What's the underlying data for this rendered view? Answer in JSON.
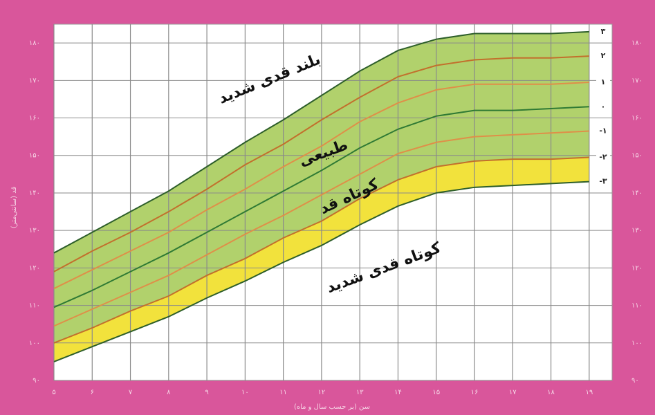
{
  "chart_data": {
    "type": "line",
    "x_label": "سن (بر حسب سال و ماه)",
    "y_label": "قد (سانتی‌متر)",
    "annotations": [
      "بلند قدی شدید",
      "طبیعی",
      "کوتاه قد",
      "کوتاه قدی شدید"
    ],
    "x": [
      5,
      6,
      7,
      8,
      9,
      10,
      11,
      12,
      13,
      14,
      15,
      16,
      17,
      18,
      19
    ],
    "series": [
      {
        "name": "۳",
        "color": "#2d5e2a",
        "values": [
          124,
          129.5,
          135,
          140.5,
          147,
          153.5,
          159.5,
          166,
          172.5,
          178,
          181,
          182.5,
          182.5,
          182.5,
          183
        ]
      },
      {
        "name": "۲",
        "color": "#c2702c",
        "values": [
          119,
          124.5,
          129.5,
          135,
          141,
          147.5,
          153,
          159.5,
          165.5,
          171,
          174,
          175.5,
          176,
          176,
          176.5
        ]
      },
      {
        "name": "۱",
        "color": "#df8f48",
        "values": [
          114.5,
          119.5,
          124.5,
          129.5,
          135.5,
          141,
          147,
          152.5,
          159,
          164,
          167.5,
          169,
          169,
          169,
          169.5
        ]
      },
      {
        "name": "۰",
        "color": "#2f7a34",
        "values": [
          109.5,
          114,
          119,
          124,
          129.5,
          135,
          140.5,
          146,
          152,
          157,
          160.5,
          162,
          162,
          162.5,
          163
        ]
      },
      {
        "name": "-۱",
        "color": "#df8f48",
        "values": [
          104.5,
          109,
          113.5,
          118,
          123.5,
          129,
          134,
          139.5,
          145,
          150.5,
          153.5,
          155,
          155.5,
          156,
          156.5
        ]
      },
      {
        "name": "-۲",
        "color": "#c2702c",
        "values": [
          100,
          104,
          108.5,
          112.5,
          118,
          122.5,
          128,
          132.5,
          138.5,
          143.5,
          147,
          148.5,
          149,
          149,
          149.5
        ]
      },
      {
        "name": "-۳",
        "color": "#2d5e2a",
        "values": [
          95,
          99,
          103,
          107,
          112,
          116.5,
          121.5,
          126,
          131.5,
          136.5,
          140,
          141.5,
          142,
          142.5,
          143
        ]
      }
    ],
    "xlim": [
      5,
      19.6
    ],
    "xticks": [
      {
        "value": 5,
        "label": "۵"
      },
      {
        "value": 6,
        "label": "۶"
      },
      {
        "value": 7,
        "label": "۷"
      },
      {
        "value": 8,
        "label": "۸"
      },
      {
        "value": 9,
        "label": "۹"
      },
      {
        "value": 10,
        "label": "۱۰"
      },
      {
        "value": 11,
        "label": "۱۱"
      },
      {
        "value": 12,
        "label": "۱۲"
      },
      {
        "value": 13,
        "label": "۱۳"
      },
      {
        "value": 14,
        "label": "۱۴"
      },
      {
        "value": 15,
        "label": "۱۵"
      },
      {
        "value": 16,
        "label": "۱۶"
      },
      {
        "value": 17,
        "label": "۱۷"
      },
      {
        "value": 18,
        "label": "۱۸"
      },
      {
        "value": 19,
        "label": "۱۹"
      }
    ],
    "ylim": [
      90,
      185
    ],
    "yticks": [
      {
        "value": 90,
        "label": "۹۰"
      },
      {
        "value": 100,
        "label": "۱۰۰"
      },
      {
        "value": 110,
        "label": "۱۱۰"
      },
      {
        "value": 120,
        "label": "۱۲۰"
      },
      {
        "value": 130,
        "label": "۱۳۰"
      },
      {
        "value": 140,
        "label": "۱۴۰"
      },
      {
        "value": 150,
        "label": "۱۵۰"
      },
      {
        "value": 160,
        "label": "۱۶۰"
      },
      {
        "value": 170,
        "label": "۱۷۰"
      },
      {
        "value": 180,
        "label": "۱۸۰"
      }
    ],
    "grid": true
  }
}
